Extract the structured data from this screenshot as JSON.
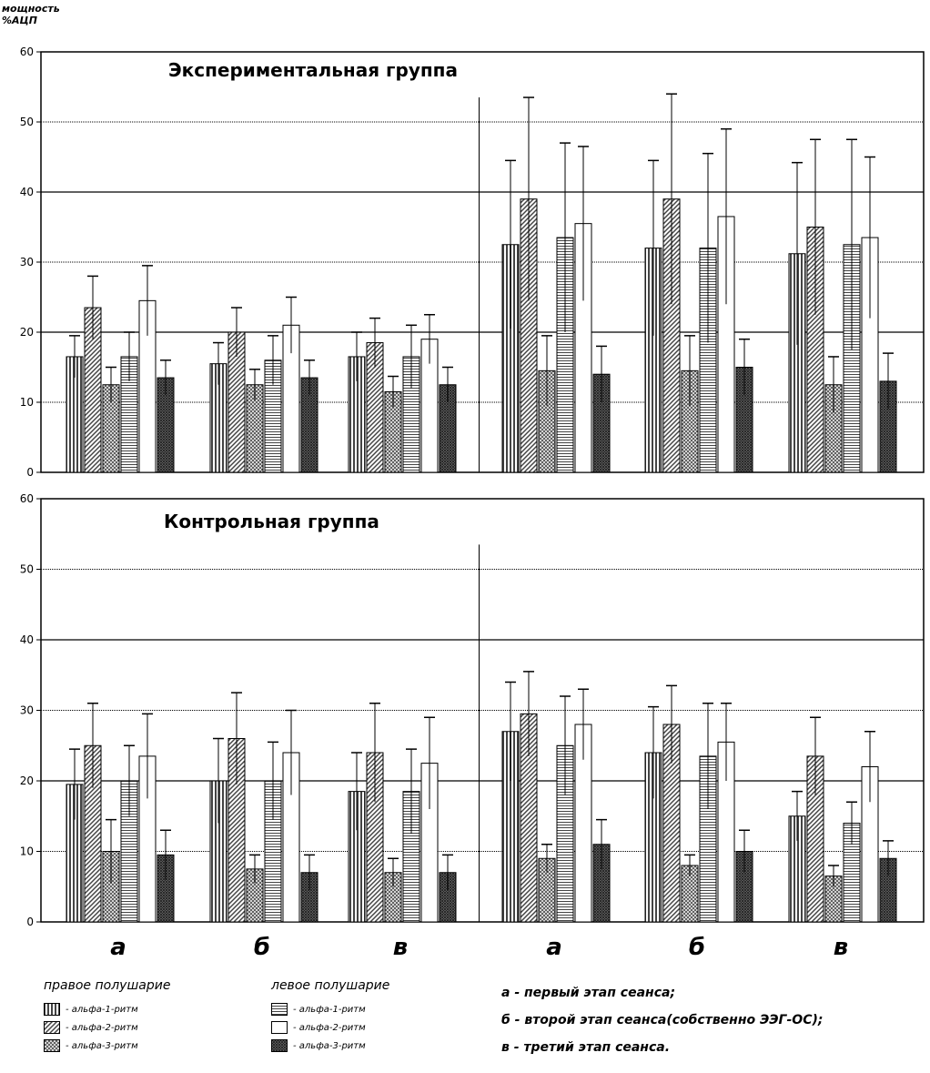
{
  "y_axis_label": [
    "мощность",
    "%АЦП"
  ],
  "chart_data": [
    {
      "type": "bar",
      "title": "Экспериментальная группа",
      "ylim": [
        0,
        60
      ],
      "yticks": [
        0,
        10,
        20,
        30,
        40,
        50,
        60
      ],
      "grid": true,
      "groups": [
        "а",
        "б",
        "в",
        "а",
        "б",
        "в"
      ],
      "series": [
        {
          "name": "правое полушарие - альфа-1-ритм",
          "values": [
            16.5,
            15.5,
            16.5,
            32.5,
            32,
            31.2
          ],
          "errors": [
            3,
            3,
            3.5,
            12,
            12.5,
            13
          ]
        },
        {
          "name": "правое полушарие - альфа-2-ритм",
          "values": [
            23.5,
            20,
            18.5,
            39,
            39,
            35
          ],
          "errors": [
            4.5,
            3.5,
            3.5,
            14.5,
            15,
            12.5
          ]
        },
        {
          "name": "правое полушарие - альфа-3-ритм",
          "values": [
            12.5,
            12.5,
            11.5,
            14.5,
            14.5,
            12.5
          ],
          "errors": [
            2.5,
            2.2,
            2.2,
            5,
            5,
            4
          ]
        },
        {
          "name": "левое полушарие - альфа-1-ритм",
          "values": [
            16.5,
            16,
            16.5,
            33.5,
            32,
            32.5
          ],
          "errors": [
            3.5,
            3.5,
            4.5,
            13.5,
            13.5,
            15
          ]
        },
        {
          "name": "левое полушарие - альфа-2-ритм",
          "values": [
            24.5,
            21,
            19,
            35.5,
            36.5,
            33.5
          ],
          "errors": [
            5,
            4,
            3.5,
            11,
            12.5,
            11.5
          ]
        },
        {
          "name": "левое полушарие - альфа-3-ритм",
          "values": [
            13.5,
            13.5,
            12.5,
            14,
            15,
            13
          ],
          "errors": [
            2.5,
            2.5,
            2.5,
            4,
            4,
            4
          ]
        }
      ]
    },
    {
      "type": "bar",
      "title": "Контрольная группа",
      "ylim": [
        0,
        60
      ],
      "yticks": [
        0,
        10,
        20,
        30,
        40,
        50,
        60
      ],
      "grid": true,
      "groups": [
        "а",
        "б",
        "в",
        "а",
        "б",
        "в"
      ],
      "series": [
        {
          "name": "правое полушарие - альфа-1-ритм",
          "values": [
            19.5,
            20,
            18.5,
            27,
            24,
            15
          ],
          "errors": [
            5,
            6,
            5.5,
            7,
            6.5,
            3.5
          ]
        },
        {
          "name": "правое полушарие - альфа-2-ритм",
          "values": [
            25,
            26,
            24,
            29.5,
            28,
            23.5
          ],
          "errors": [
            6,
            6.5,
            7,
            6,
            5.5,
            5.5
          ]
        },
        {
          "name": "правое полушарие - альфа-3-ритм",
          "values": [
            10,
            7.5,
            7,
            9,
            8,
            6.5
          ],
          "errors": [
            4.5,
            2,
            2,
            2,
            1.5,
            1.5
          ]
        },
        {
          "name": "левое полушарие - альфа-1-ритм",
          "values": [
            20,
            20,
            18.5,
            25,
            23.5,
            14
          ],
          "errors": [
            5,
            5.5,
            6,
            7,
            7.5,
            3
          ]
        },
        {
          "name": "левое полушарие - альфа-2-ритм",
          "values": [
            23.5,
            24,
            22.5,
            28,
            25.5,
            22
          ],
          "errors": [
            6,
            6,
            6.5,
            5,
            5.5,
            5
          ]
        },
        {
          "name": "левое полушарие - альфа-3-ритм",
          "values": [
            9.5,
            7,
            7,
            11,
            10,
            9
          ],
          "errors": [
            3.5,
            2.5,
            2.5,
            3.5,
            3,
            2.5
          ]
        }
      ]
    }
  ],
  "legend": {
    "right_title": "правое полушарие",
    "left_title": "левое полушарие",
    "right_items": [
      "- альфа-1-ритм",
      "- альфа-2-ритм",
      "- альфа-3-ритм"
    ],
    "left_items": [
      "- альфа-1-ритм",
      "- альфа-2-ритм",
      "- альфа-3-ритм"
    ]
  },
  "notes": [
    "а - первый этап сеанса;",
    "б - второй этап сеанса(собственно ЭЭГ-ОС);",
    "в - третий этап сеанса."
  ]
}
